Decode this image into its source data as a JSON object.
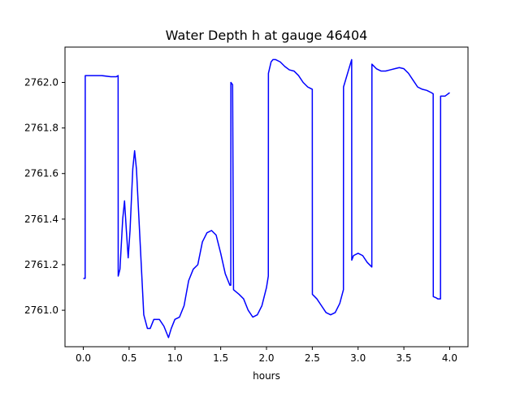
{
  "chart_data": {
    "type": "line",
    "title": "Water Depth h at gauge 46404",
    "xlabel": "hours",
    "ylabel": "",
    "xlim": [
      -0.2,
      4.2
    ],
    "ylim": [
      2760.84,
      2762.155
    ],
    "xticks": [
      0.0,
      0.5,
      1.0,
      1.5,
      2.0,
      2.5,
      3.0,
      3.5,
      4.0
    ],
    "xtick_labels": [
      "0.0",
      "0.5",
      "1.0",
      "1.5",
      "2.0",
      "2.5",
      "3.0",
      "3.5",
      "4.0"
    ],
    "yticks": [
      2761.0,
      2761.2,
      2761.4,
      2761.6,
      2761.8,
      2762.0
    ],
    "ytick_labels": [
      "2761.0",
      "2761.2",
      "2761.4",
      "2761.6",
      "2761.8",
      "2762.0"
    ],
    "grid": false,
    "series": [
      {
        "color": "#0000ff",
        "points": [
          [
            0.0,
            2761.14
          ],
          [
            0.02,
            2761.14
          ],
          [
            0.021,
            2762.03
          ],
          [
            0.1,
            2762.03
          ],
          [
            0.2,
            2762.03
          ],
          [
            0.3,
            2762.025
          ],
          [
            0.36,
            2762.025
          ],
          [
            0.38,
            2762.03
          ],
          [
            0.381,
            2761.15
          ],
          [
            0.4,
            2761.18
          ],
          [
            0.43,
            2761.4
          ],
          [
            0.45,
            2761.48
          ],
          [
            0.47,
            2761.35
          ],
          [
            0.49,
            2761.23
          ],
          [
            0.51,
            2761.35
          ],
          [
            0.54,
            2761.62
          ],
          [
            0.56,
            2761.7
          ],
          [
            0.58,
            2761.62
          ],
          [
            0.62,
            2761.3
          ],
          [
            0.66,
            2760.98
          ],
          [
            0.7,
            2760.92
          ],
          [
            0.73,
            2760.92
          ],
          [
            0.77,
            2760.96
          ],
          [
            0.83,
            2760.96
          ],
          [
            0.88,
            2760.93
          ],
          [
            0.93,
            2760.88
          ],
          [
            0.96,
            2760.92
          ],
          [
            1.0,
            2760.96
          ],
          [
            1.05,
            2760.97
          ],
          [
            1.1,
            2761.02
          ],
          [
            1.15,
            2761.13
          ],
          [
            1.2,
            2761.18
          ],
          [
            1.25,
            2761.2
          ],
          [
            1.3,
            2761.3
          ],
          [
            1.35,
            2761.34
          ],
          [
            1.4,
            2761.35
          ],
          [
            1.45,
            2761.33
          ],
          [
            1.5,
            2761.25
          ],
          [
            1.55,
            2761.16
          ],
          [
            1.6,
            2761.11
          ],
          [
            1.61,
            2761.11
          ],
          [
            1.611,
            2762.0
          ],
          [
            1.63,
            2761.99
          ],
          [
            1.64,
            2761.09
          ],
          [
            1.7,
            2761.07
          ],
          [
            1.75,
            2761.05
          ],
          [
            1.8,
            2761.0
          ],
          [
            1.85,
            2760.97
          ],
          [
            1.9,
            2760.98
          ],
          [
            1.95,
            2761.02
          ],
          [
            2.0,
            2761.1
          ],
          [
            2.02,
            2761.15
          ],
          [
            2.021,
            2762.04
          ],
          [
            2.05,
            2762.09
          ],
          [
            2.07,
            2762.1
          ],
          [
            2.1,
            2762.1
          ],
          [
            2.15,
            2762.09
          ],
          [
            2.2,
            2762.07
          ],
          [
            2.25,
            2762.055
          ],
          [
            2.3,
            2762.05
          ],
          [
            2.35,
            2762.03
          ],
          [
            2.4,
            2762.0
          ],
          [
            2.45,
            2761.98
          ],
          [
            2.5,
            2761.97
          ],
          [
            2.501,
            2761.07
          ],
          [
            2.55,
            2761.05
          ],
          [
            2.6,
            2761.02
          ],
          [
            2.65,
            2760.99
          ],
          [
            2.7,
            2760.98
          ],
          [
            2.75,
            2760.99
          ],
          [
            2.8,
            2761.03
          ],
          [
            2.84,
            2761.09
          ],
          [
            2.841,
            2761.98
          ],
          [
            2.9,
            2762.06
          ],
          [
            2.93,
            2762.1
          ],
          [
            2.931,
            2761.22
          ],
          [
            2.95,
            2761.24
          ],
          [
            3.0,
            2761.25
          ],
          [
            3.05,
            2761.24
          ],
          [
            3.1,
            2761.21
          ],
          [
            3.15,
            2761.19
          ],
          [
            3.151,
            2762.08
          ],
          [
            3.2,
            2762.06
          ],
          [
            3.25,
            2762.05
          ],
          [
            3.3,
            2762.05
          ],
          [
            3.35,
            2762.055
          ],
          [
            3.4,
            2762.06
          ],
          [
            3.45,
            2762.065
          ],
          [
            3.5,
            2762.06
          ],
          [
            3.55,
            2762.04
          ],
          [
            3.6,
            2762.01
          ],
          [
            3.65,
            2761.98
          ],
          [
            3.7,
            2761.97
          ],
          [
            3.75,
            2761.965
          ],
          [
            3.8,
            2761.955
          ],
          [
            3.82,
            2761.95
          ],
          [
            3.821,
            2761.06
          ],
          [
            3.85,
            2761.055
          ],
          [
            3.87,
            2761.05
          ],
          [
            3.9,
            2761.05
          ],
          [
            3.901,
            2761.94
          ],
          [
            3.95,
            2761.94
          ],
          [
            4.0,
            2761.955
          ]
        ]
      }
    ]
  }
}
